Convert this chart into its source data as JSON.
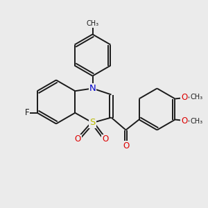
{
  "background_color": "#ebebeb",
  "bond_color": "#1a1a1a",
  "bond_width": 1.4,
  "N_color": "#0000cc",
  "S_color": "#bbbb00",
  "O_color": "#dd0000",
  "F_color": "#1a1a1a",
  "figsize": [
    3.0,
    3.0
  ],
  "dpi": 100,
  "xlim": [
    0,
    10
  ],
  "ylim": [
    0,
    10
  ]
}
